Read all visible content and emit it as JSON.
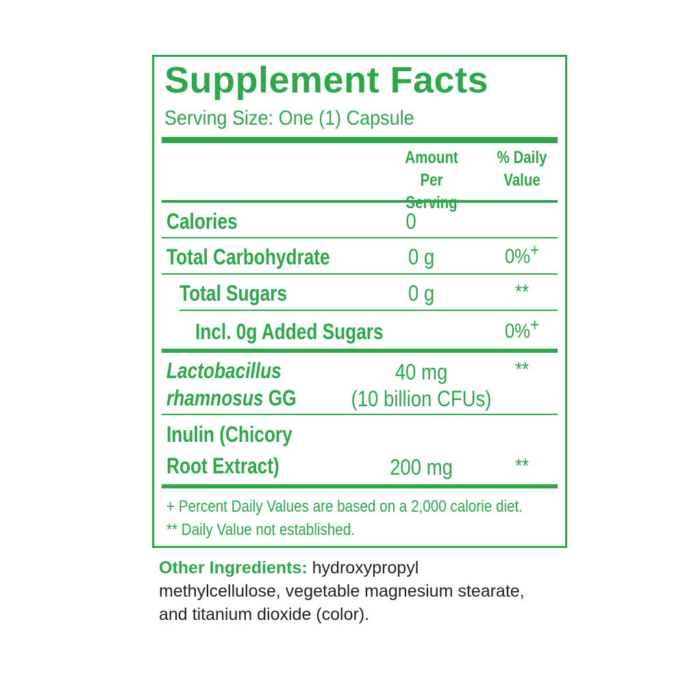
{
  "title": "Supplement Facts",
  "serving_size": "Serving Size: One (1) Capsule",
  "columns": {
    "amount": "Amount Per Serving",
    "daily_value": "% Daily Value"
  },
  "rows": [
    {
      "name": "Calories",
      "amount": "0"
    },
    {
      "name": "Total Carbohydrate",
      "amount": "0 g",
      "daily_value": "0%",
      "mark": "+"
    },
    {
      "name": "Total Sugars",
      "amount": "0 g",
      "daily_value": "**"
    },
    {
      "name": "Incl. 0g Added Sugars",
      "daily_value": "0%",
      "mark": "+"
    },
    {
      "name_italic": [
        "Lactobacillus",
        "rhamnosus"
      ],
      "name_suffix": "GG",
      "amount": [
        "40 mg",
        "(10 billion CFUs)"
      ],
      "daily_value": "**"
    },
    {
      "name": [
        "Inulin (Chicory",
        "Root Extract)"
      ],
      "amount": "200 mg",
      "daily_value": "**"
    }
  ],
  "footnotes": [
    "+ Percent Daily Values are based on a 2,000 calorie diet.",
    "** Daily Value not established."
  ],
  "other_ingredients": {
    "label": "Other Ingredients:",
    "text": "hydroxypropyl methylcellulose, vegetable magnesium stearate, and titanium dioxide (color)."
  }
}
